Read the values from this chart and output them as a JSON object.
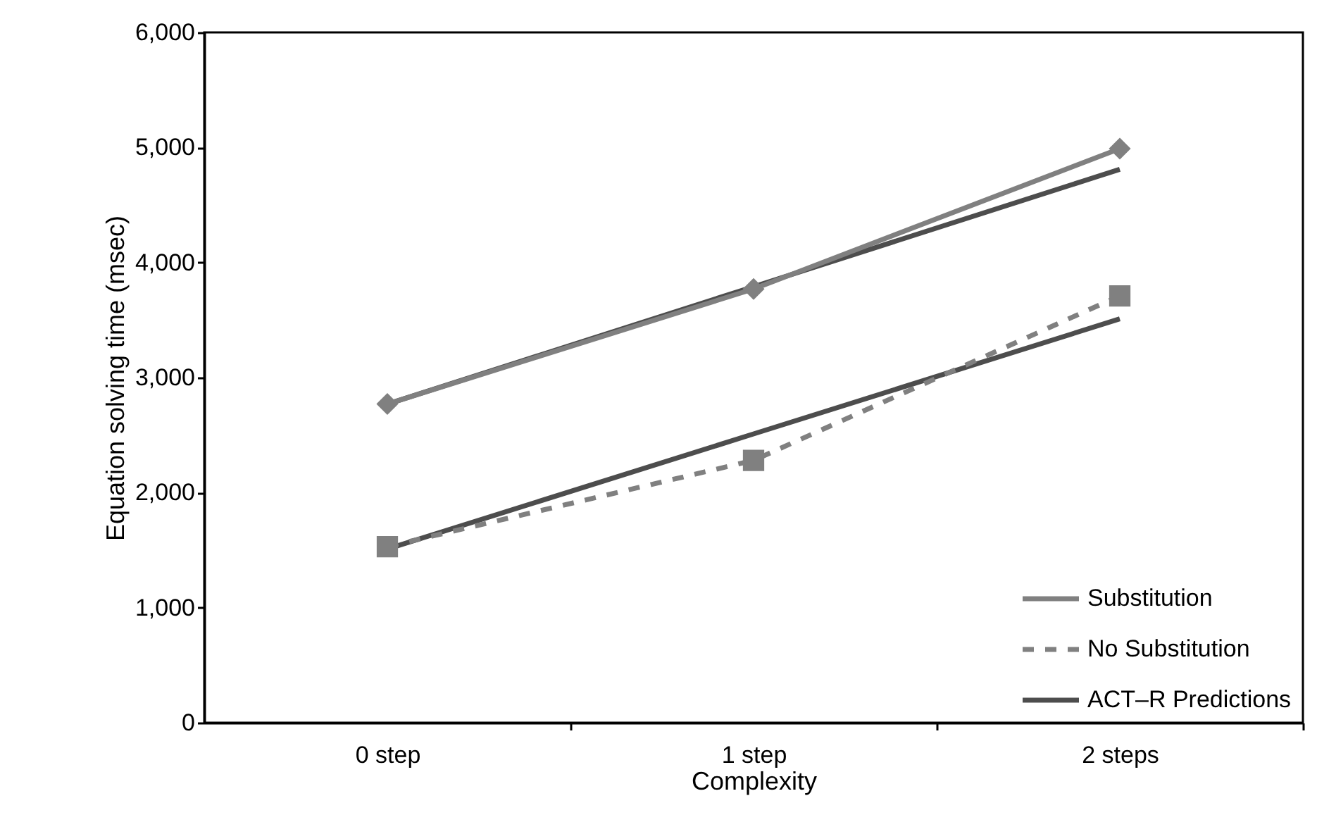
{
  "chart_data": {
    "type": "line",
    "xlabel": "Complexity",
    "ylabel": "Equation solving time (msec)",
    "categories": [
      "0 step",
      "1 step",
      "2 steps"
    ],
    "series": [
      {
        "name": "Substitution",
        "color": "#808080",
        "values": [
          2770,
          3770,
          4990
        ],
        "marker": "diamond",
        "line_style": "solid"
      },
      {
        "name": "No Substitution",
        "color": "#808080",
        "values": [
          1530,
          2280,
          3710
        ],
        "marker": "square",
        "line_style": "dashed"
      },
      {
        "name": "ACT–R Predictions",
        "color": "#4d4d4d",
        "values": [
          2770,
          3790,
          4810
        ],
        "marker": "none",
        "line_style": "solid"
      },
      {
        "color": "#4d4d4d",
        "values": [
          1510,
          2510,
          3510
        ],
        "marker": "none",
        "line_style": "solid"
      }
    ],
    "ylim": [
      0,
      6000
    ],
    "yticks": [
      0,
      {
        "value": 1000,
        "label": "1,000"
      },
      {
        "value": 2000,
        "label": "2,000"
      },
      {
        "value": 3000,
        "label": "3,000"
      },
      {
        "value": 4000,
        "label": "4,000"
      },
      {
        "value": 5000,
        "label": "5,000"
      },
      {
        "value": 6000,
        "label": "6,000"
      }
    ],
    "grid": false,
    "legend": "bottom right"
  }
}
